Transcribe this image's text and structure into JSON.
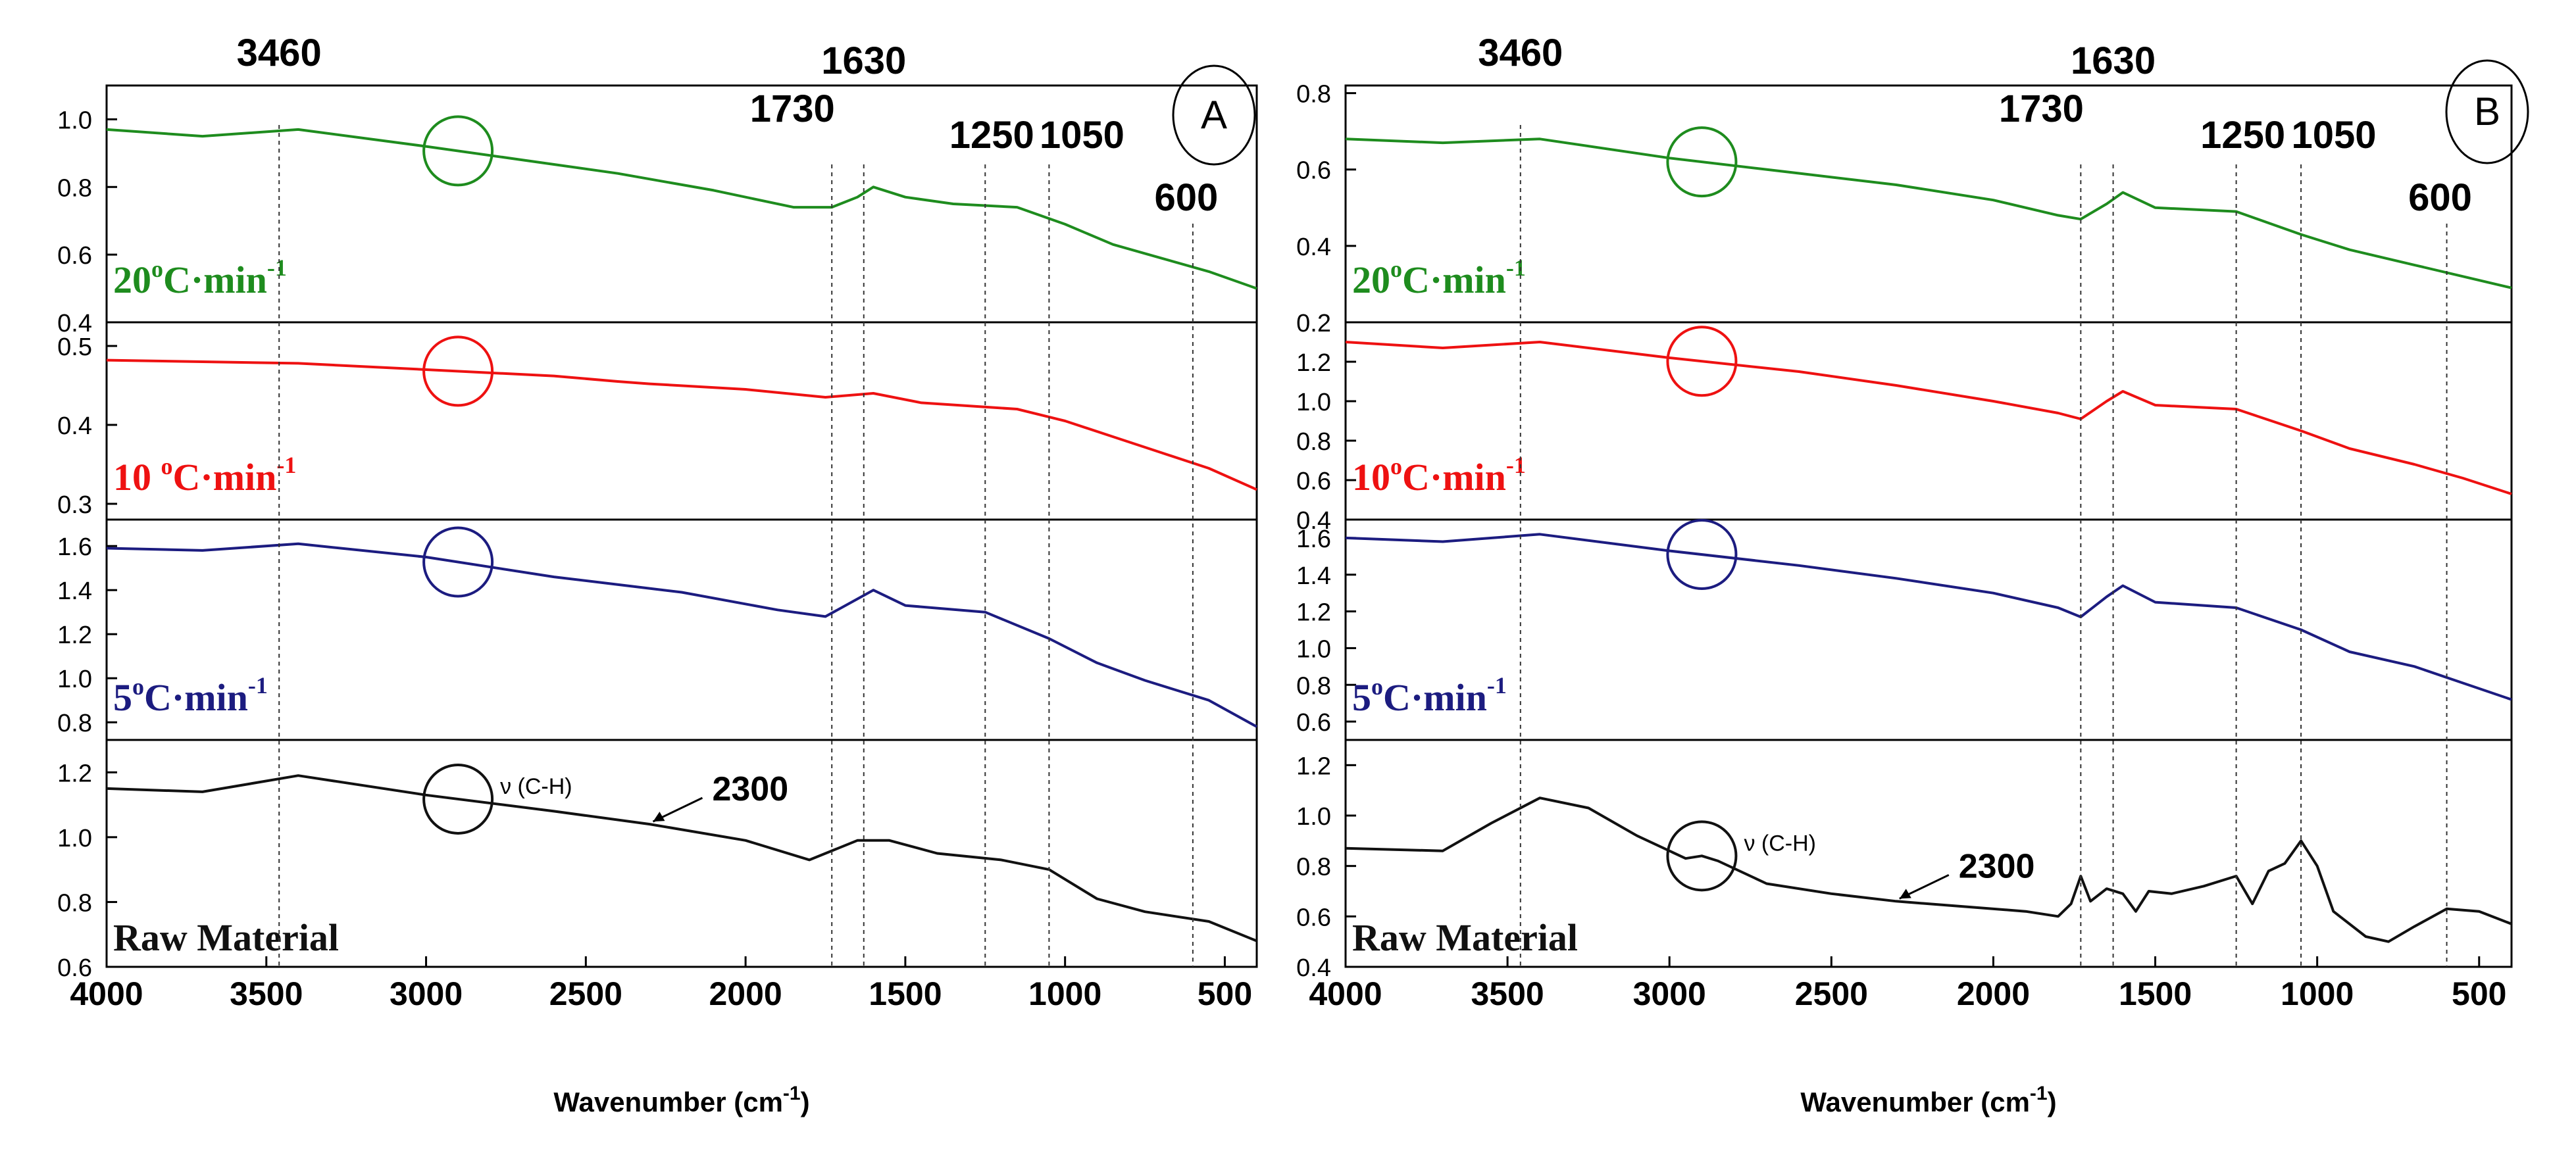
{
  "chart_data": [
    {
      "type": "line",
      "panel": "A",
      "xlabel": "Wavenumber (cm",
      "xlabel_sup": "-1",
      "xlabel_end": ")",
      "xlim": [
        4000,
        400
      ],
      "xticks": [
        4000,
        3500,
        3000,
        2500,
        2000,
        1500,
        1000,
        500
      ],
      "marker_lines": [
        3460,
        1730,
        1630,
        1250,
        1050,
        600
      ],
      "marker_labels": [
        "3460",
        "1730",
        "1630",
        "1250",
        "1050",
        "600"
      ],
      "circle_x": 2900,
      "annotation_vch": "ν (C-H)",
      "annotation_2300": "2300",
      "series": [
        {
          "name": "20°C·min",
          "label_main": "20",
          "label_o": "o",
          "label_rest": "C·min",
          "label_sup": "-1",
          "color": "#1e8c1e",
          "ylim": [
            0.4,
            1.1
          ],
          "yticks": [
            "0.4",
            "0.6",
            "0.8",
            "1.0"
          ],
          "x": [
            4000,
            3700,
            3400,
            3000,
            2700,
            2400,
            2100,
            1850,
            1730,
            1650,
            1600,
            1500,
            1350,
            1150,
            1000,
            850,
            700,
            550,
            400
          ],
          "y": [
            0.97,
            0.95,
            0.97,
            0.92,
            0.88,
            0.84,
            0.79,
            0.74,
            0.74,
            0.77,
            0.8,
            0.77,
            0.75,
            0.74,
            0.69,
            0.63,
            0.59,
            0.55,
            0.5
          ]
        },
        {
          "name": "10 °C·min",
          "label_main": "10 ",
          "label_o": "o",
          "label_rest": "C·min",
          "label_sup": "-1",
          "color": "#ee1111",
          "ylim": [
            0.28,
            0.53
          ],
          "yticks": [
            "0.3",
            "0.4",
            "0.5"
          ],
          "x": [
            4000,
            3700,
            3400,
            3000,
            2600,
            2400,
            2300,
            2000,
            1750,
            1600,
            1450,
            1150,
            1000,
            850,
            700,
            550,
            400
          ],
          "y": [
            0.482,
            0.48,
            0.478,
            0.47,
            0.462,
            0.455,
            0.452,
            0.445,
            0.435,
            0.44,
            0.428,
            0.42,
            0.405,
            0.385,
            0.365,
            0.345,
            0.318
          ]
        },
        {
          "name": "5°C·min",
          "label_main": "5",
          "label_o": "o",
          "label_rest": "C·min",
          "label_sup": "-1",
          "color": "#1c1c80",
          "ylim": [
            0.72,
            1.72
          ],
          "yticks": [
            "0.8",
            "1.0",
            "1.2",
            "1.4",
            "1.6"
          ],
          "x": [
            4000,
            3700,
            3400,
            3000,
            2600,
            2200,
            1900,
            1750,
            1650,
            1600,
            1500,
            1250,
            1050,
            900,
            750,
            550,
            400
          ],
          "y": [
            1.59,
            1.58,
            1.61,
            1.55,
            1.46,
            1.39,
            1.31,
            1.28,
            1.36,
            1.4,
            1.33,
            1.3,
            1.18,
            1.07,
            0.99,
            0.9,
            0.78
          ]
        },
        {
          "name": "Raw Material",
          "label_main": "Raw Material",
          "color": "#111111",
          "ylim": [
            0.6,
            1.3
          ],
          "yticks": [
            "0.6",
            "0.8",
            "1.0",
            "1.2"
          ],
          "x": [
            4000,
            3700,
            3400,
            3000,
            2600,
            2300,
            2000,
            1800,
            1650,
            1550,
            1400,
            1200,
            1050,
            900,
            750,
            550,
            400
          ],
          "y": [
            1.15,
            1.14,
            1.19,
            1.13,
            1.08,
            1.04,
            0.99,
            0.93,
            0.99,
            0.99,
            0.95,
            0.93,
            0.9,
            0.81,
            0.77,
            0.74,
            0.68
          ]
        }
      ]
    },
    {
      "type": "line",
      "panel": "B",
      "xlabel": "Wavenumber (cm",
      "xlabel_sup": "-1",
      "xlabel_end": ")",
      "xlim": [
        4000,
        400
      ],
      "xticks": [
        4000,
        3500,
        3000,
        2500,
        2000,
        1500,
        1000,
        500
      ],
      "marker_lines": [
        3460,
        1730,
        1630,
        1250,
        1050,
        600
      ],
      "marker_labels": [
        "3460",
        "1730",
        "1630",
        "1250",
        "1050",
        "600"
      ],
      "circle_x": 2900,
      "annotation_vch": "ν (C-H)",
      "annotation_2300": "2300",
      "series": [
        {
          "name": "20°C·min",
          "label_main": "20",
          "label_o": "o",
          "label_rest": "C·min",
          "label_sup": "-1",
          "color": "#1e8c1e",
          "ylim": [
            0.2,
            0.82
          ],
          "yticks": [
            "0.2",
            "0.4",
            "0.6",
            "0.8"
          ],
          "x": [
            4000,
            3700,
            3400,
            3000,
            2600,
            2300,
            2000,
            1800,
            1730,
            1650,
            1600,
            1500,
            1250,
            1050,
            900,
            700,
            550,
            400
          ],
          "y": [
            0.68,
            0.67,
            0.68,
            0.63,
            0.59,
            0.56,
            0.52,
            0.48,
            0.47,
            0.51,
            0.54,
            0.5,
            0.49,
            0.43,
            0.39,
            0.35,
            0.32,
            0.29
          ]
        },
        {
          "name": "10°C·min",
          "label_main": "10",
          "label_o": "o",
          "label_rest": "C·min",
          "label_sup": "-1",
          "color": "#ee1111",
          "ylim": [
            0.4,
            1.4
          ],
          "yticks": [
            "0.4",
            "0.6",
            "0.8",
            "1.0",
            "1.2"
          ],
          "x": [
            4000,
            3700,
            3400,
            3000,
            2600,
            2300,
            2000,
            1800,
            1730,
            1650,
            1600,
            1500,
            1250,
            1050,
            900,
            700,
            550,
            400
          ],
          "y": [
            1.3,
            1.27,
            1.3,
            1.22,
            1.15,
            1.08,
            1.0,
            0.94,
            0.91,
            1.0,
            1.05,
            0.98,
            0.96,
            0.85,
            0.76,
            0.68,
            0.61,
            0.53
          ]
        },
        {
          "name": "5°C·min",
          "label_main": "5",
          "label_o": "o",
          "label_rest": "C·min",
          "label_sup": "-1",
          "color": "#1c1c80",
          "ylim": [
            0.5,
            1.7
          ],
          "yticks": [
            "0.6",
            "0.8",
            "1.0",
            "1.2",
            "1.4",
            "1.6"
          ],
          "x": [
            4000,
            3700,
            3400,
            3000,
            2600,
            2300,
            2000,
            1800,
            1730,
            1650,
            1600,
            1500,
            1250,
            1050,
            900,
            700,
            550,
            400
          ],
          "y": [
            1.6,
            1.58,
            1.62,
            1.53,
            1.45,
            1.38,
            1.3,
            1.22,
            1.17,
            1.28,
            1.34,
            1.25,
            1.22,
            1.1,
            0.98,
            0.9,
            0.81,
            0.72
          ]
        },
        {
          "name": "Raw Material",
          "label_main": "Raw Material",
          "color": "#111111",
          "ylim": [
            0.4,
            1.3
          ],
          "yticks": [
            "0.4",
            "0.6",
            "0.8",
            "1.0",
            "1.2"
          ],
          "x": [
            4000,
            3700,
            3550,
            3400,
            3250,
            3100,
            2950,
            2900,
            2850,
            2700,
            2500,
            2300,
            2100,
            1900,
            1800,
            1760,
            1730,
            1700,
            1650,
            1600,
            1560,
            1520,
            1450,
            1350,
            1250,
            1200,
            1150,
            1100,
            1050,
            1000,
            950,
            850,
            780,
            700,
            600,
            500,
            400
          ],
          "y": [
            0.87,
            0.86,
            0.97,
            1.07,
            1.03,
            0.92,
            0.83,
            0.84,
            0.82,
            0.73,
            0.69,
            0.66,
            0.64,
            0.62,
            0.6,
            0.65,
            0.76,
            0.66,
            0.71,
            0.69,
            0.62,
            0.7,
            0.69,
            0.72,
            0.76,
            0.65,
            0.78,
            0.81,
            0.9,
            0.8,
            0.62,
            0.52,
            0.5,
            0.56,
            0.63,
            0.62,
            0.57
          ]
        }
      ]
    }
  ]
}
